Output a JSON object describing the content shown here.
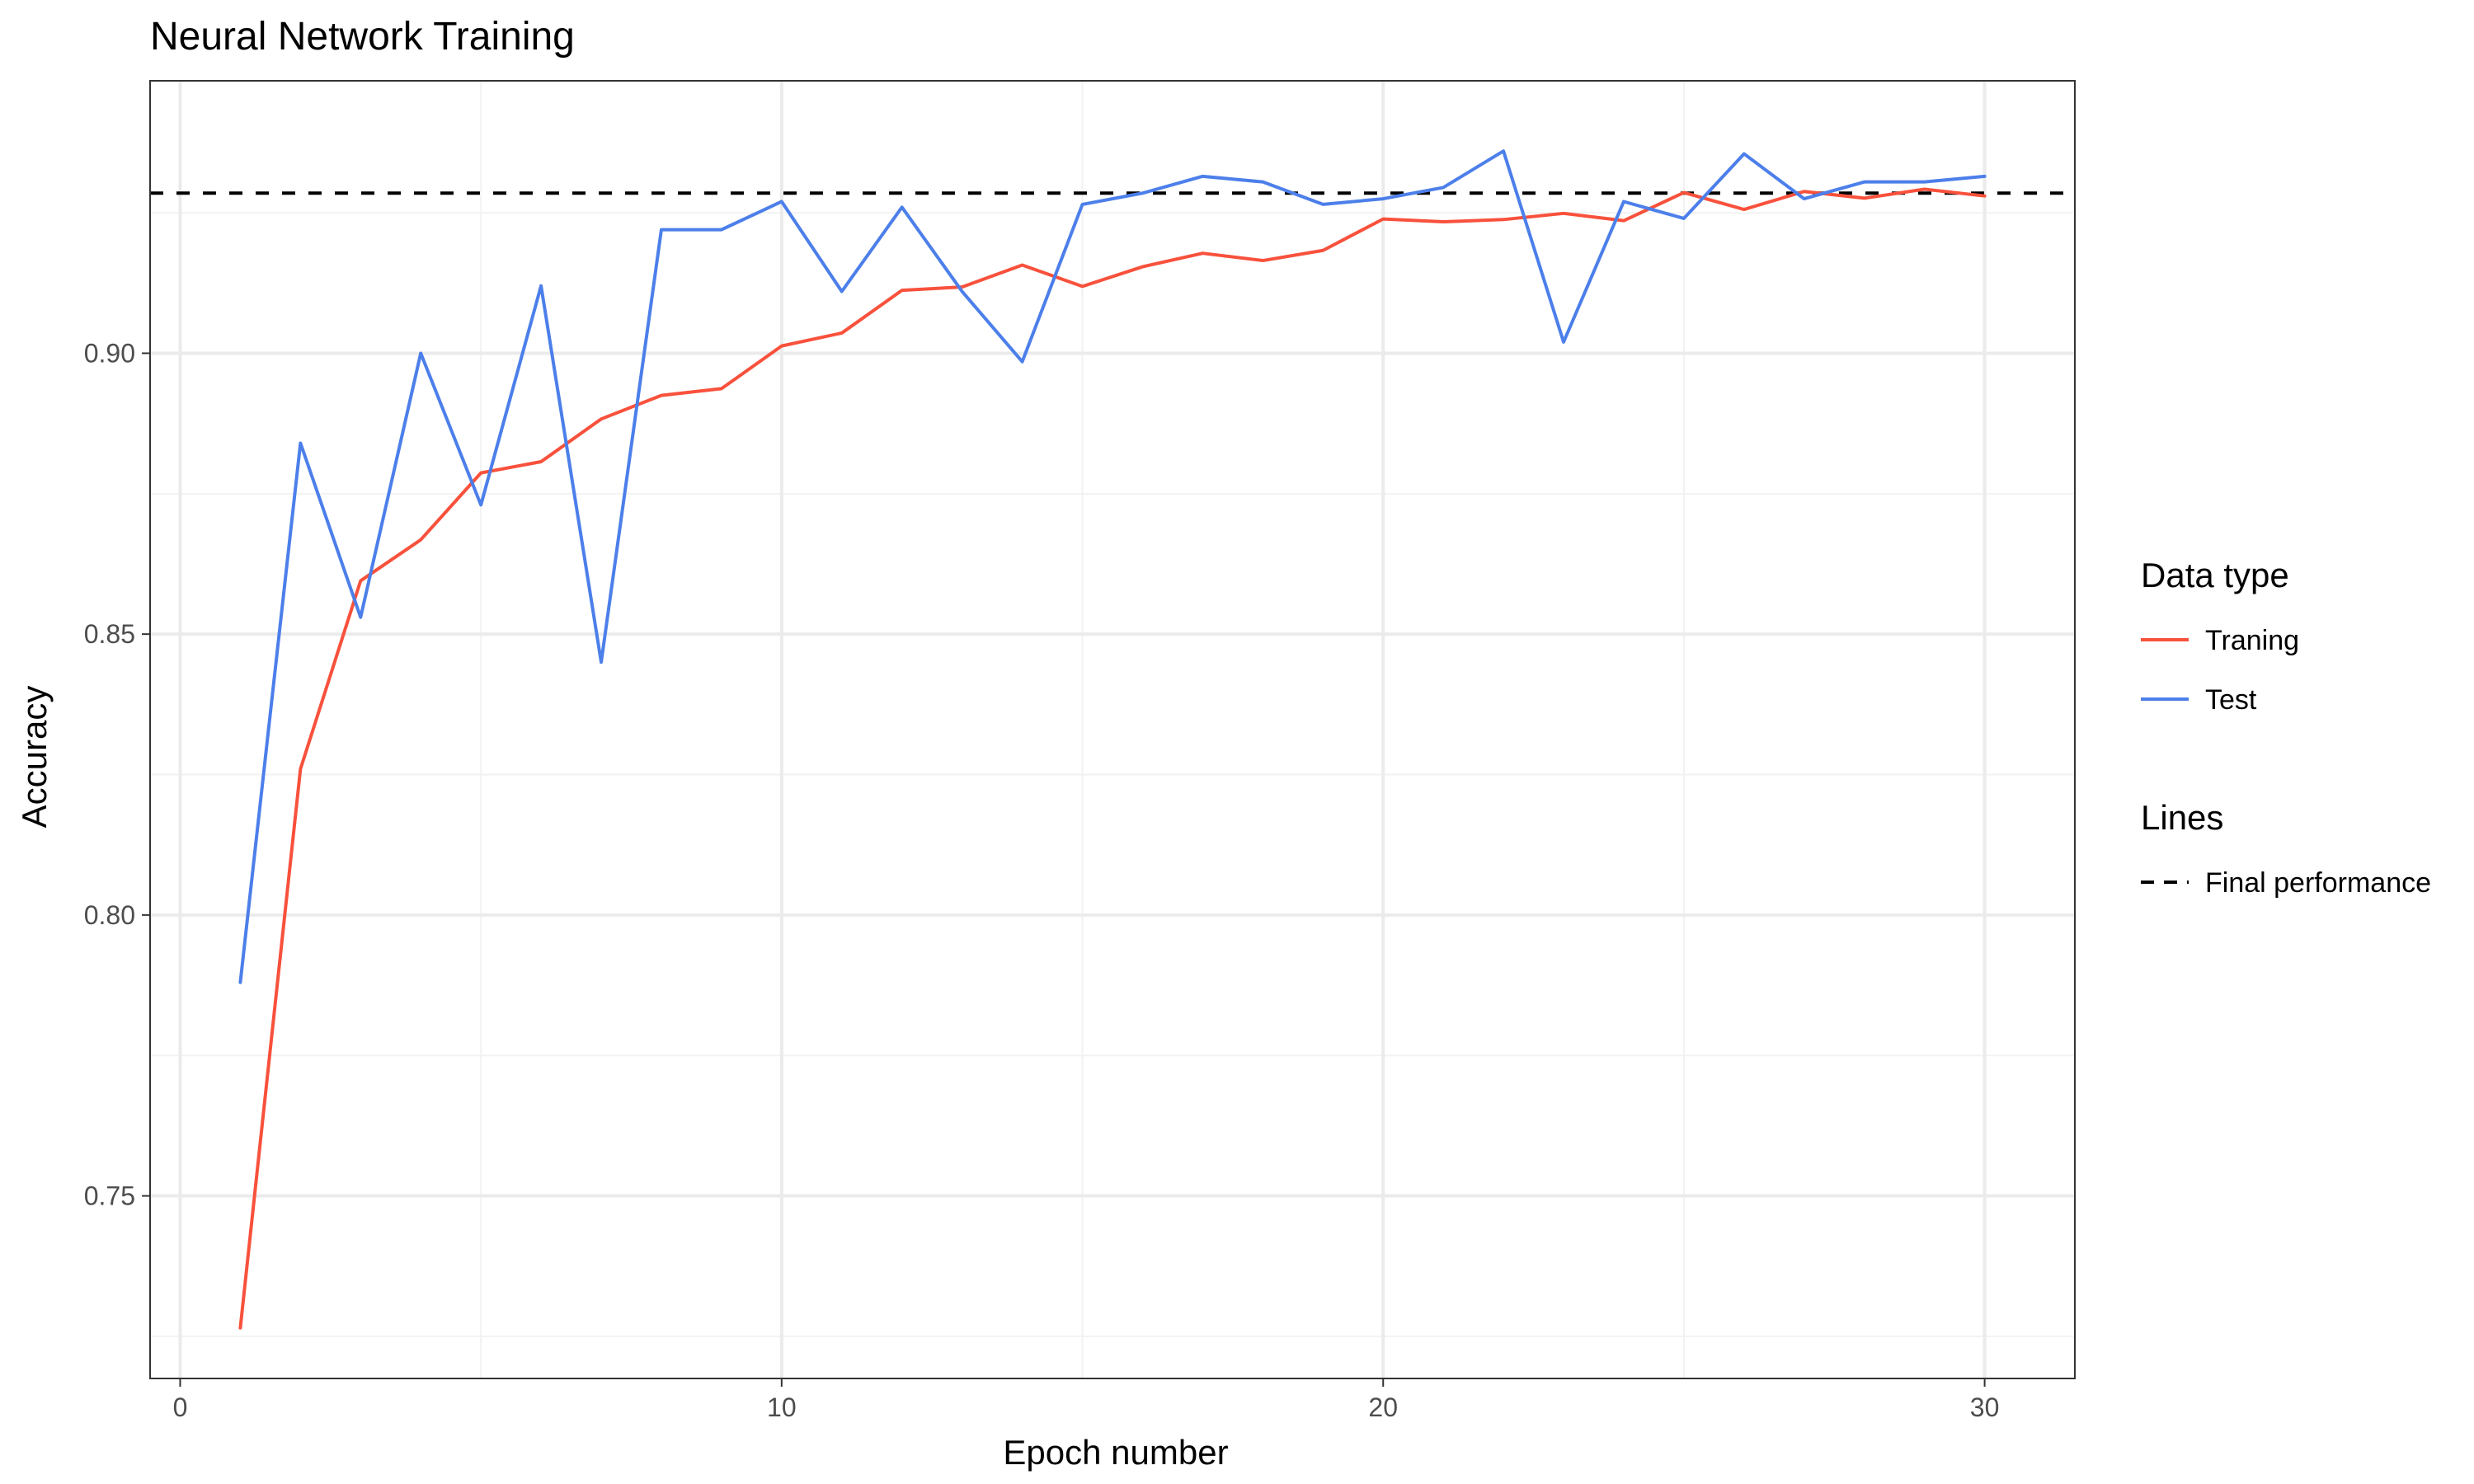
{
  "chart_data": {
    "type": "line",
    "title": "Neural Network Training",
    "xlabel": "Epoch number",
    "ylabel": "Accuracy",
    "xlim": [
      -0.5,
      31.5
    ],
    "ylim": [
      0.7175,
      0.9485
    ],
    "x_ticks": [
      0,
      10,
      20,
      30
    ],
    "x_tick_labels": [
      "0",
      "10",
      "20",
      "30"
    ],
    "x_minor_ticks": [
      5,
      15,
      25
    ],
    "y_ticks": [
      0.75,
      0.8,
      0.85,
      0.9
    ],
    "y_tick_labels": [
      "0.75",
      "0.80",
      "0.85",
      "0.90"
    ],
    "y_minor_ticks": [
      0.725,
      0.775,
      0.825,
      0.875,
      0.925
    ],
    "grid": true,
    "x": [
      1,
      2,
      3,
      4,
      5,
      6,
      7,
      8,
      9,
      10,
      11,
      12,
      13,
      14,
      15,
      16,
      17,
      18,
      19,
      20,
      21,
      22,
      23,
      24,
      25,
      26,
      27,
      28,
      29,
      30
    ],
    "series": [
      {
        "name": "Traning",
        "color": "#f8513c",
        "values": [
          0.7265,
          0.826,
          0.8595,
          0.8668,
          0.8787,
          0.8807,
          0.8883,
          0.8925,
          0.8937,
          0.9013,
          0.9036,
          0.9112,
          0.9118,
          0.9157,
          0.9119,
          0.9154,
          0.9178,
          0.9165,
          0.9183,
          0.9239,
          0.9234,
          0.9238,
          0.9249,
          0.9236,
          0.9286,
          0.9256,
          0.9288,
          0.9276,
          0.9292,
          0.928
        ]
      },
      {
        "name": "Test",
        "color": "#4c7fea",
        "values": [
          0.788,
          0.884,
          0.853,
          0.9,
          0.873,
          0.912,
          0.845,
          0.922,
          0.922,
          0.927,
          0.911,
          0.926,
          0.911,
          0.8985,
          0.9265,
          0.9285,
          0.9315,
          0.9305,
          0.9265,
          0.9275,
          0.9295,
          0.936,
          0.902,
          0.927,
          0.924,
          0.9355,
          0.9275,
          0.9305,
          0.9305,
          0.9315
        ]
      }
    ],
    "reference_lines": [
      {
        "name": "Final performance",
        "y": 0.9285,
        "style": "dashed",
        "color": "#000000"
      }
    ],
    "legend": {
      "placement": "right",
      "groups": [
        {
          "title": "Data type",
          "items": [
            {
              "label": "Traning",
              "color": "#f8513c",
              "style": "solid"
            },
            {
              "label": "Test",
              "color": "#4c7fea",
              "style": "solid"
            }
          ]
        },
        {
          "title": "Lines",
          "items": [
            {
              "label": "Final performance",
              "color": "#000000",
              "style": "dashed"
            }
          ]
        }
      ]
    }
  }
}
